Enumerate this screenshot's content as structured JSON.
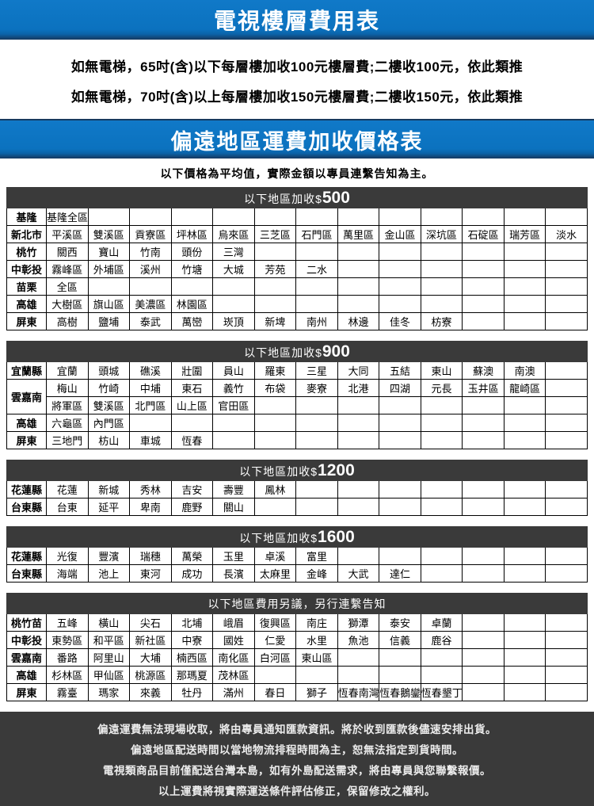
{
  "titles": {
    "floor_fee_table": "電視樓層費用表",
    "remote_area_table": "偏遠地區運費加收價格表"
  },
  "elevator_notes": [
    "如無電梯，65吋(含)以下每層樓加收100元樓層費;二樓收100元，依此類推",
    "如無電梯，70吋(含)以上每層樓加收150元樓層費;二樓收150元，依此類推"
  ],
  "average_note": "以下價格為平均值，實際金額以專員連繫告知為主。",
  "colors": {
    "bar_blue": "#0b72bf",
    "bar_blue_dark_edge": "#16395f",
    "band_dark": "#3a3a3a",
    "band_text": "#ffffff",
    "table_border": "#000000"
  },
  "table_layout": {
    "data_columns": 13
  },
  "tables": [
    {
      "id": "surcharge-500",
      "header_label": "以下地區加收",
      "currency": "$",
      "amount": "500",
      "rows": [
        {
          "label": "基隆",
          "cells": [
            "基隆全區"
          ]
        },
        {
          "label": "新北市",
          "cells": [
            "平溪區",
            "雙溪區",
            "貢寮區",
            "坪林區",
            "烏來區",
            "三芝區",
            "石門區",
            "萬里區",
            "金山區",
            "深坑區",
            "石碇區",
            "瑞芳區",
            "淡水"
          ]
        },
        {
          "label": "桃竹",
          "cells": [
            "關西",
            "寶山",
            "竹南",
            "頭份",
            "三灣"
          ]
        },
        {
          "label": "中彰投",
          "cells": [
            "霧峰區",
            "外埔區",
            "溪州",
            "竹塘",
            "大城",
            "芳苑",
            "二水"
          ]
        },
        {
          "label": "苗栗",
          "cells": [
            "全區"
          ]
        },
        {
          "label": "高雄",
          "cells": [
            "大樹區",
            "旗山區",
            "美濃區",
            "林園區"
          ]
        },
        {
          "label": "屏東",
          "cells": [
            "高樹",
            "鹽埔",
            "泰武",
            "萬巒",
            "崁頂",
            "新埤",
            "南州",
            "林邊",
            "佳冬",
            "枋寮"
          ]
        }
      ]
    },
    {
      "id": "surcharge-900",
      "header_label": "以下地區加收",
      "currency": "$",
      "amount": "900",
      "rows": [
        {
          "label": "宜蘭縣",
          "cells": [
            "宜蘭",
            "頭城",
            "礁溪",
            "壯圍",
            "員山",
            "羅東",
            "三星",
            "大同",
            "五結",
            "東山",
            "蘇澳",
            "南澳"
          ]
        },
        {
          "label": "雲嘉南",
          "rowspan": 2,
          "cells": [
            "梅山",
            "竹崎",
            "中埔",
            "東石",
            "義竹",
            "布袋",
            "麥寮",
            "北港",
            "四湖",
            "元長",
            "玉井區",
            "龍崎區"
          ]
        },
        {
          "skip_label": true,
          "cells": [
            "將軍區",
            "雙溪區",
            "北門區",
            "山上區",
            "官田區"
          ]
        },
        {
          "label": "高雄",
          "cells": [
            "六龜區",
            "內門區"
          ]
        },
        {
          "label": "屏東",
          "cells": [
            "三地門",
            "枋山",
            "車城",
            "恆春"
          ]
        }
      ]
    },
    {
      "id": "surcharge-1200",
      "header_label": "以下地區加收",
      "currency": "$",
      "amount": "1200",
      "rows": [
        {
          "label": "花蓮縣",
          "cells": [
            "花蓮",
            "新城",
            "秀林",
            "吉安",
            "壽豐",
            "鳳林"
          ]
        },
        {
          "label": "台東縣",
          "cells": [
            "台東",
            "延平",
            "卑南",
            "鹿野",
            "關山"
          ]
        }
      ]
    },
    {
      "id": "surcharge-1600",
      "header_label": "以下地區加收",
      "currency": "$",
      "amount": "1600",
      "rows": [
        {
          "label": "花蓮縣",
          "cells": [
            "光復",
            "豐濱",
            "瑞穗",
            "萬榮",
            "玉里",
            "卓溪",
            "富里"
          ]
        },
        {
          "label": "台東縣",
          "cells": [
            "海端",
            "池上",
            "東河",
            "成功",
            "長濱",
            "太麻里",
            "金峰",
            "大武",
            "達仁"
          ]
        }
      ]
    },
    {
      "id": "surcharge-negotiated",
      "header_label": "以下地區費用另議，另行連繫告知",
      "currency": "",
      "amount": "",
      "rows": [
        {
          "label": "桃竹苗",
          "cells": [
            "五峰",
            "橫山",
            "尖石",
            "北埔",
            "峨眉",
            "復興區",
            "南庄",
            "獅潭",
            "泰安",
            "卓蘭"
          ]
        },
        {
          "label": "中彰投",
          "cells": [
            "東勢區",
            "和平區",
            "新社區",
            "中寮",
            "國姓",
            "仁愛",
            "水里",
            "魚池",
            "信義",
            "鹿谷"
          ]
        },
        {
          "label": "雲嘉南",
          "cells": [
            "番路",
            "阿里山",
            "大埔",
            "楠西區",
            "南化區",
            "白河區",
            "東山區"
          ]
        },
        {
          "label": "高雄",
          "cells": [
            "杉林區",
            "甲仙區",
            "桃源區",
            "那瑪夏",
            "茂林區"
          ]
        },
        {
          "label": "屏東",
          "cells": [
            "霧臺",
            "瑪家",
            "來義",
            "牡丹",
            "滿州",
            "春日",
            "獅子",
            "恆春南灣",
            "恆春鵝鑾",
            "恆春墾丁"
          ]
        }
      ]
    }
  ],
  "footer_lines": [
    "偏遠運費無法現場收取，將由專員通知匯款資訊。將於收到匯款後儘速安排出貨。",
    "偏遠地區配送時間以當地物流排程時間為主，恕無法指定到貨時間。",
    "電視類商品目前僅配送台灣本島，如有外島配送需求，將由專員與您聯繫報價。",
    "以上運費將視實際運送條件評估修正，保留修改之權利。"
  ]
}
